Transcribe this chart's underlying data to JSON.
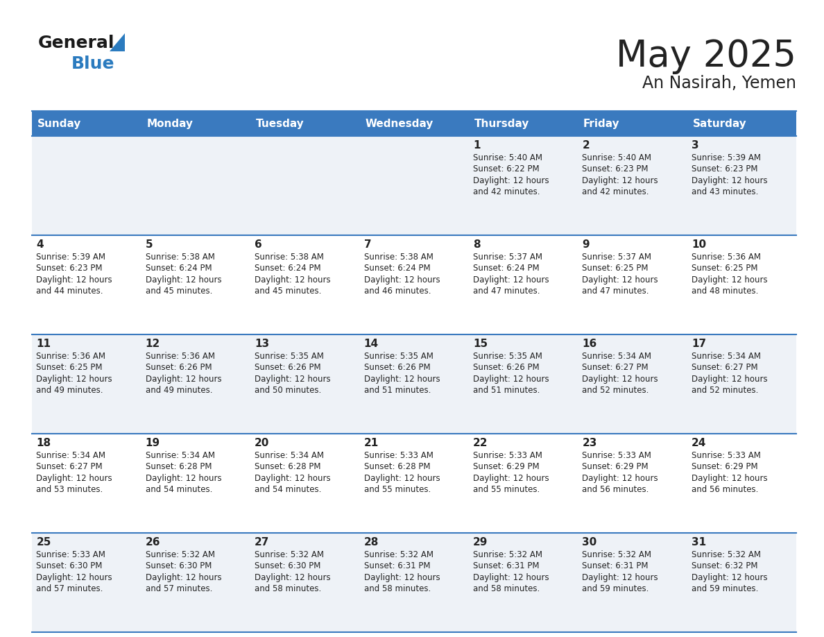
{
  "title": "May 2025",
  "subtitle": "An Nasirah, Yemen",
  "days_of_week": [
    "Sunday",
    "Monday",
    "Tuesday",
    "Wednesday",
    "Thursday",
    "Friday",
    "Saturday"
  ],
  "header_bg": "#3a7abf",
  "header_text": "#ffffff",
  "row_bg_odd": "#eef2f7",
  "row_bg_even": "#ffffff",
  "divider_color": "#3a7abf",
  "text_color": "#222222",
  "logo_general_color": "#1a1a1a",
  "logo_blue_color": "#2b7bbf",
  "logo_triangle_color": "#2b7bbf",
  "calendar_data": [
    [
      null,
      null,
      null,
      null,
      {
        "day": 1,
        "sunrise": "5:40 AM",
        "sunset": "6:22 PM",
        "daylight": "12 hours and 42 minutes."
      },
      {
        "day": 2,
        "sunrise": "5:40 AM",
        "sunset": "6:23 PM",
        "daylight": "12 hours and 42 minutes."
      },
      {
        "day": 3,
        "sunrise": "5:39 AM",
        "sunset": "6:23 PM",
        "daylight": "12 hours and 43 minutes."
      }
    ],
    [
      {
        "day": 4,
        "sunrise": "5:39 AM",
        "sunset": "6:23 PM",
        "daylight": "12 hours and 44 minutes."
      },
      {
        "day": 5,
        "sunrise": "5:38 AM",
        "sunset": "6:24 PM",
        "daylight": "12 hours and 45 minutes."
      },
      {
        "day": 6,
        "sunrise": "5:38 AM",
        "sunset": "6:24 PM",
        "daylight": "12 hours and 45 minutes."
      },
      {
        "day": 7,
        "sunrise": "5:38 AM",
        "sunset": "6:24 PM",
        "daylight": "12 hours and 46 minutes."
      },
      {
        "day": 8,
        "sunrise": "5:37 AM",
        "sunset": "6:24 PM",
        "daylight": "12 hours and 47 minutes."
      },
      {
        "day": 9,
        "sunrise": "5:37 AM",
        "sunset": "6:25 PM",
        "daylight": "12 hours and 47 minutes."
      },
      {
        "day": 10,
        "sunrise": "5:36 AM",
        "sunset": "6:25 PM",
        "daylight": "12 hours and 48 minutes."
      }
    ],
    [
      {
        "day": 11,
        "sunrise": "5:36 AM",
        "sunset": "6:25 PM",
        "daylight": "12 hours and 49 minutes."
      },
      {
        "day": 12,
        "sunrise": "5:36 AM",
        "sunset": "6:26 PM",
        "daylight": "12 hours and 49 minutes."
      },
      {
        "day": 13,
        "sunrise": "5:35 AM",
        "sunset": "6:26 PM",
        "daylight": "12 hours and 50 minutes."
      },
      {
        "day": 14,
        "sunrise": "5:35 AM",
        "sunset": "6:26 PM",
        "daylight": "12 hours and 51 minutes."
      },
      {
        "day": 15,
        "sunrise": "5:35 AM",
        "sunset": "6:26 PM",
        "daylight": "12 hours and 51 minutes."
      },
      {
        "day": 16,
        "sunrise": "5:34 AM",
        "sunset": "6:27 PM",
        "daylight": "12 hours and 52 minutes."
      },
      {
        "day": 17,
        "sunrise": "5:34 AM",
        "sunset": "6:27 PM",
        "daylight": "12 hours and 52 minutes."
      }
    ],
    [
      {
        "day": 18,
        "sunrise": "5:34 AM",
        "sunset": "6:27 PM",
        "daylight": "12 hours and 53 minutes."
      },
      {
        "day": 19,
        "sunrise": "5:34 AM",
        "sunset": "6:28 PM",
        "daylight": "12 hours and 54 minutes."
      },
      {
        "day": 20,
        "sunrise": "5:34 AM",
        "sunset": "6:28 PM",
        "daylight": "12 hours and 54 minutes."
      },
      {
        "day": 21,
        "sunrise": "5:33 AM",
        "sunset": "6:28 PM",
        "daylight": "12 hours and 55 minutes."
      },
      {
        "day": 22,
        "sunrise": "5:33 AM",
        "sunset": "6:29 PM",
        "daylight": "12 hours and 55 minutes."
      },
      {
        "day": 23,
        "sunrise": "5:33 AM",
        "sunset": "6:29 PM",
        "daylight": "12 hours and 56 minutes."
      },
      {
        "day": 24,
        "sunrise": "5:33 AM",
        "sunset": "6:29 PM",
        "daylight": "12 hours and 56 minutes."
      }
    ],
    [
      {
        "day": 25,
        "sunrise": "5:33 AM",
        "sunset": "6:30 PM",
        "daylight": "12 hours and 57 minutes."
      },
      {
        "day": 26,
        "sunrise": "5:32 AM",
        "sunset": "6:30 PM",
        "daylight": "12 hours and 57 minutes."
      },
      {
        "day": 27,
        "sunrise": "5:32 AM",
        "sunset": "6:30 PM",
        "daylight": "12 hours and 58 minutes."
      },
      {
        "day": 28,
        "sunrise": "5:32 AM",
        "sunset": "6:31 PM",
        "daylight": "12 hours and 58 minutes."
      },
      {
        "day": 29,
        "sunrise": "5:32 AM",
        "sunset": "6:31 PM",
        "daylight": "12 hours and 58 minutes."
      },
      {
        "day": 30,
        "sunrise": "5:32 AM",
        "sunset": "6:31 PM",
        "daylight": "12 hours and 59 minutes."
      },
      {
        "day": 31,
        "sunrise": "5:32 AM",
        "sunset": "6:32 PM",
        "daylight": "12 hours and 59 minutes."
      }
    ]
  ]
}
